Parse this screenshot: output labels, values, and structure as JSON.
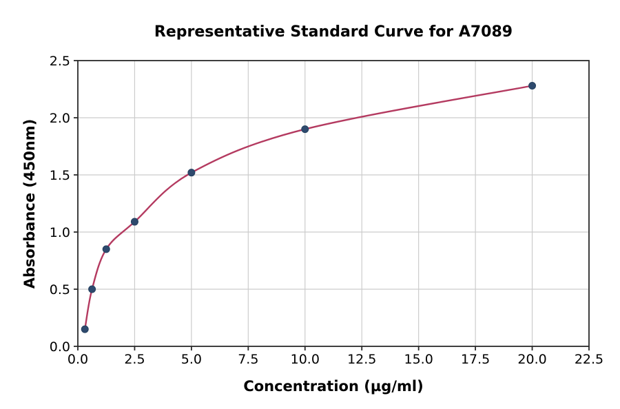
{
  "figure": {
    "background": "#ffffff"
  },
  "chart_data": {
    "type": "scatter",
    "title": "Representative Standard Curve for A7089",
    "xlabel": "Concentration (µg/ml)",
    "ylabel": "Absorbance (450nm)",
    "xlim": [
      0,
      22.5
    ],
    "ylim": [
      0,
      2.5
    ],
    "x_tick_values": [
      0,
      2.5,
      5,
      7.5,
      10,
      12.5,
      15,
      17.5,
      20,
      22.5
    ],
    "x_tick_labels": [
      "0.0",
      "2.5",
      "5.0",
      "7.5",
      "10.0",
      "12.5",
      "15.0",
      "17.5",
      "20.0",
      "22.5"
    ],
    "y_tick_values": [
      0,
      0.5,
      1,
      1.5,
      2,
      2.5
    ],
    "y_tick_labels": [
      "0.0",
      "0.5",
      "1.0",
      "1.5",
      "2.0",
      "2.5"
    ],
    "grid": true,
    "legend": "none",
    "points": {
      "name": "standard-points",
      "x": [
        0.31,
        0.625,
        1.25,
        2.5,
        5,
        10,
        20
      ],
      "y": [
        0.15,
        0.5,
        0.85,
        1.09,
        1.52,
        1.9,
        2.28
      ]
    },
    "curve": {
      "name": "fitted-standard-curve",
      "passes_through_points": true
    },
    "colors": {
      "curve": "#b43a60",
      "marker": "#2e4a6e",
      "marker_edge": "#24405f",
      "grid": "#cccccc",
      "spine": "#2a2a2a",
      "background": "#ffffff",
      "text": "#000000"
    }
  }
}
